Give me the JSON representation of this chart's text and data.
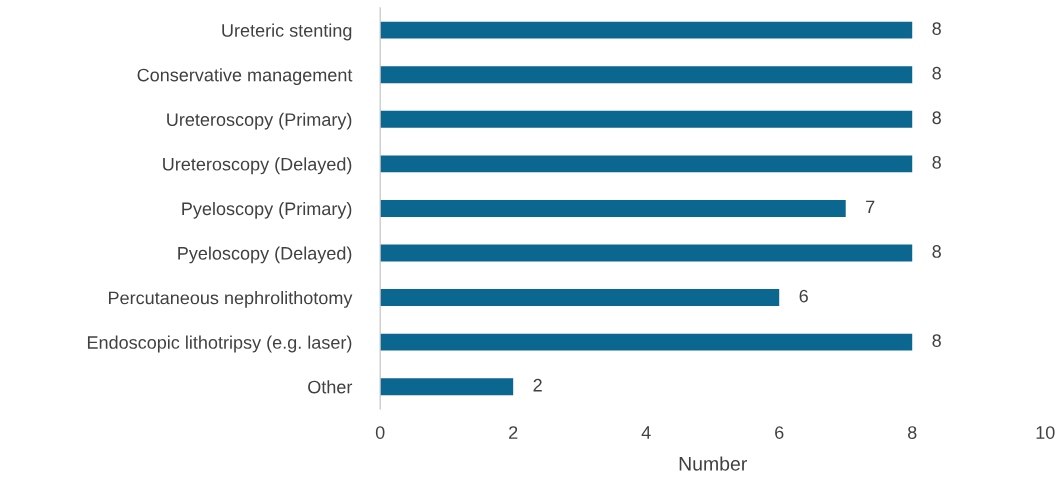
{
  "chart_data": {
    "type": "bar",
    "orientation": "horizontal",
    "xlabel": "Number",
    "categories": [
      "Ureteric stenting",
      "Conservative management",
      "Ureteroscopy (Primary)",
      "Ureteroscopy (Delayed)",
      "Pyeloscopy (Primary)",
      "Pyeloscopy (Delayed)",
      "Percutaneous nephrolithotomy",
      "Endoscopic lithotripsy (e.g. laser)",
      "Other"
    ],
    "values": [
      8,
      8,
      8,
      8,
      7,
      8,
      6,
      8,
      2
    ],
    "color": "#0b6690",
    "xlim": [
      0,
      10
    ],
    "xticks": [
      0,
      2,
      4,
      6,
      8,
      10
    ],
    "data_labels": true,
    "grid": false,
    "legend": false
  }
}
